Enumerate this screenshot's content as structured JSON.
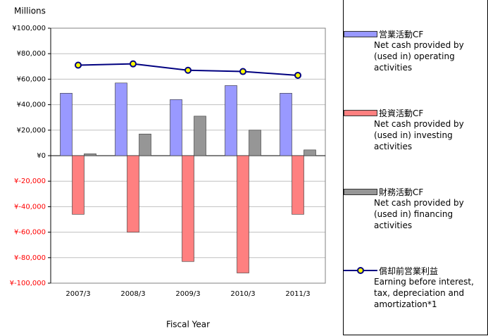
{
  "chart_data": {
    "type": "bar",
    "y_unit": "Millions",
    "xlabel": "Fiscal Year",
    "categories": [
      "2007/3",
      "2008/3",
      "2009/3",
      "2010/3",
      "2011/3"
    ],
    "series": [
      {
        "name": "営業活動CF",
        "description": "Net cash provided by (used in) operating activities",
        "color": "#9999ff",
        "type": "bar",
        "values": [
          49000,
          57000,
          44000,
          55000,
          49000
        ]
      },
      {
        "name": "投資活動CF",
        "description": "Net cash provided by (used in) investing activities",
        "color": "#ff8080",
        "type": "bar",
        "values": [
          -46000,
          -60000,
          -83000,
          -92000,
          -46000
        ]
      },
      {
        "name": "財務活動CF",
        "description": "Net cash provided by (used in) financing activities",
        "color": "#969696",
        "type": "bar",
        "values": [
          1500,
          17000,
          31000,
          20000,
          4500
        ]
      },
      {
        "name": "償却前営業利益",
        "description": "Earning before interest, tax, depreciation and amortization*1",
        "color": "#000080",
        "marker_color": "#ffff00",
        "type": "line",
        "values": [
          71000,
          72000,
          67000,
          66000,
          63000
        ]
      }
    ],
    "ylim": [
      -100000,
      100000
    ],
    "yticks": [
      {
        "value": 100000,
        "label": "¥100,000"
      },
      {
        "value": 80000,
        "label": "¥80,000"
      },
      {
        "value": 60000,
        "label": "¥60,000"
      },
      {
        "value": 40000,
        "label": "¥40,000"
      },
      {
        "value": 20000,
        "label": "¥20,000"
      },
      {
        "value": 0,
        "label": "¥0"
      },
      {
        "value": -20000,
        "label": "¥-20,000"
      },
      {
        "value": -40000,
        "label": "¥-40,000"
      },
      {
        "value": -60000,
        "label": "¥-60,000"
      },
      {
        "value": -80000,
        "label": "¥-80,000"
      },
      {
        "value": -100000,
        "label": "¥-100,000"
      }
    ],
    "negative_tick_color": "#ff0000",
    "grid": true
  }
}
